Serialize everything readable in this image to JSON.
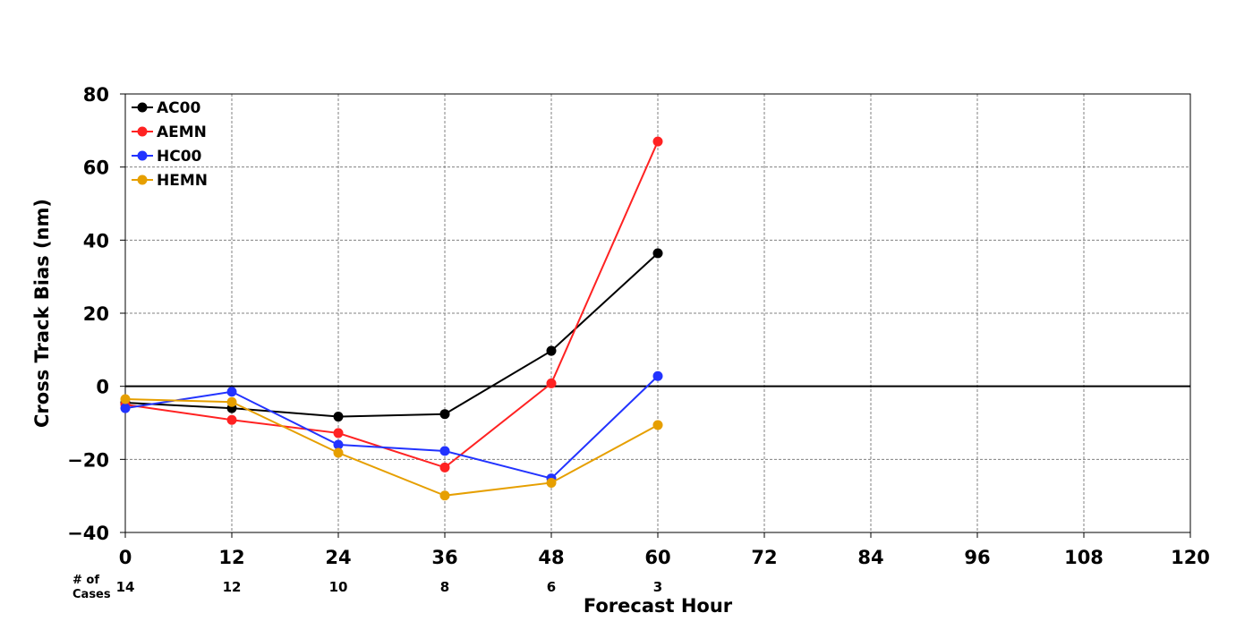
{
  "chart_data": {
    "type": "line",
    "title": "",
    "xlabel": "Forecast Hour",
    "ylabel": "Cross Track Bias (nm)",
    "xlim": [
      0,
      120
    ],
    "ylim": [
      -40,
      80
    ],
    "x_ticks": [
      0,
      12,
      24,
      36,
      48,
      60,
      72,
      84,
      96,
      108,
      120
    ],
    "y_ticks": [
      -40,
      -20,
      0,
      20,
      40,
      60,
      80
    ],
    "x_tick_labels": [
      "0",
      "12",
      "24",
      "36",
      "48",
      "60",
      "72",
      "84",
      "96",
      "108",
      "120"
    ],
    "y_tick_labels": [
      "−40",
      "−20",
      "0",
      "20",
      "40",
      "60",
      "80"
    ],
    "grid": true,
    "legend_position": "top-left",
    "zero_line": true,
    "series": [
      {
        "name": "AC00",
        "color": "#000000",
        "x": [
          0,
          12,
          24,
          36,
          48,
          60
        ],
        "values": [
          -4.5,
          -6,
          -8.3,
          -7.6,
          9.7,
          36.4
        ]
      },
      {
        "name": "AEMN",
        "color": "#ff2222",
        "x": [
          0,
          12,
          24,
          36,
          48,
          60
        ],
        "values": [
          -5,
          -9.2,
          -12.8,
          -22.2,
          0.8,
          67
        ]
      },
      {
        "name": "HC00",
        "color": "#2233ff",
        "x": [
          0,
          12,
          24,
          36,
          48,
          60
        ],
        "values": [
          -6,
          -1.5,
          -16,
          -17.7,
          -25.2,
          2.8
        ]
      },
      {
        "name": "HEMN",
        "color": "#e69f00",
        "x": [
          0,
          12,
          24,
          36,
          48,
          60
        ],
        "values": [
          -3.5,
          -4.3,
          -18.2,
          -29.9,
          -26.4,
          -10.6
        ]
      }
    ],
    "cases": {
      "label_line1": "# of",
      "label_line2": "Cases",
      "x": [
        0,
        12,
        24,
        36,
        48,
        60
      ],
      "counts": [
        "14",
        "12",
        "10",
        "8",
        "6",
        "3"
      ]
    }
  }
}
